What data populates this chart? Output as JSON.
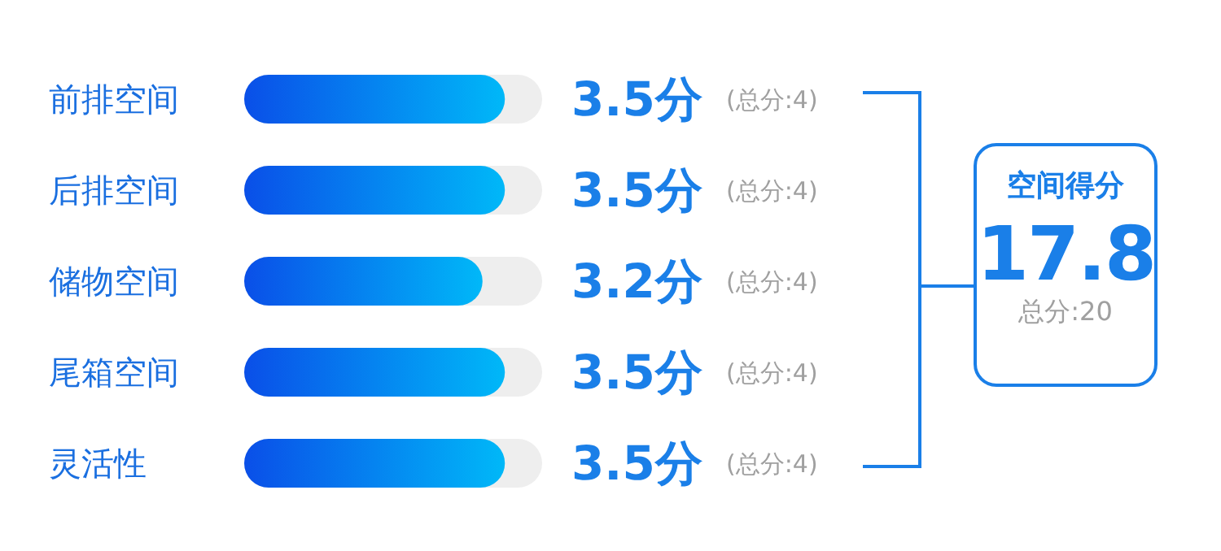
{
  "chart_data": [
    {
      "type": "bar",
      "orientation": "horizontal",
      "categories": [
        "前排空间",
        "后排空间",
        "储物空间",
        "尾箱空间",
        "灵活性"
      ],
      "values": [
        3.5,
        3.5,
        3.2,
        3.5,
        3.5
      ],
      "color": "#0a4fe8",
      "value_labels": [
        "3.5分",
        "3.5分",
        "3.2分",
        "3.5分",
        "3.5分"
      ],
      "annotations": [
        "(总分:4)",
        "(总分:4)",
        "(总分:4)",
        "(总分:4)",
        "(总分:4)"
      ],
      "xlim": [
        0,
        4
      ],
      "tick_labels": "y",
      "grid": false
    },
    {
      "type": "other",
      "title": "空间得分",
      "annotations": [
        "17.8",
        "总分:20"
      ]
    }
  ]
}
